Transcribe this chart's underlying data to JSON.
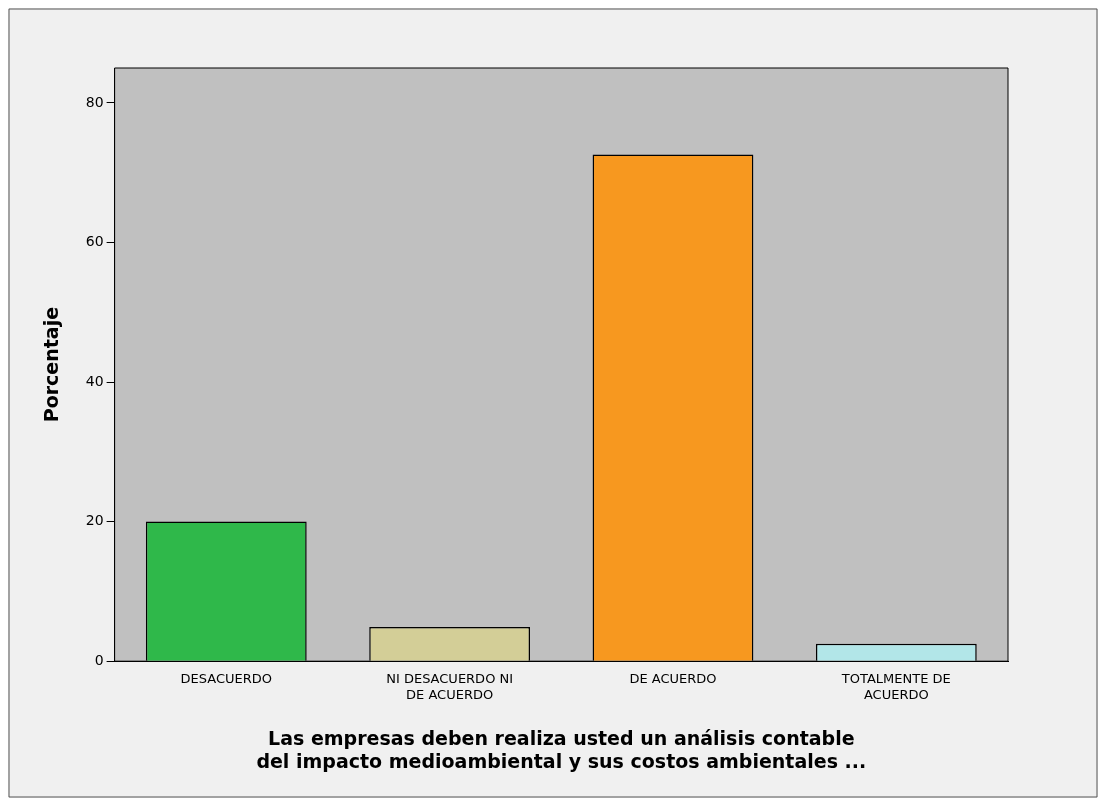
{
  "chart_data": {
    "type": "bar",
    "xlabel": "Las empresas deben realiza usted un análisis contable\ndel impacto medioambiental y sus costos ambientales ...",
    "ylabel": "Porcentaje",
    "categories": [
      "DESACUERDO",
      "NI DESACUERDO NI DE ACUERDO",
      "DE ACUERDO",
      "TOTALMENTE DE ACUERDO"
    ],
    "values": [
      20,
      4.9,
      72.6,
      2.5
    ],
    "colors": [
      "#2fb84a",
      "#d3ce97",
      "#f7981f",
      "#b2e6e8"
    ],
    "ylim": [
      0,
      85
    ],
    "yticks": [
      0,
      20,
      40,
      60,
      80
    ],
    "grid": false,
    "legend": false
  }
}
